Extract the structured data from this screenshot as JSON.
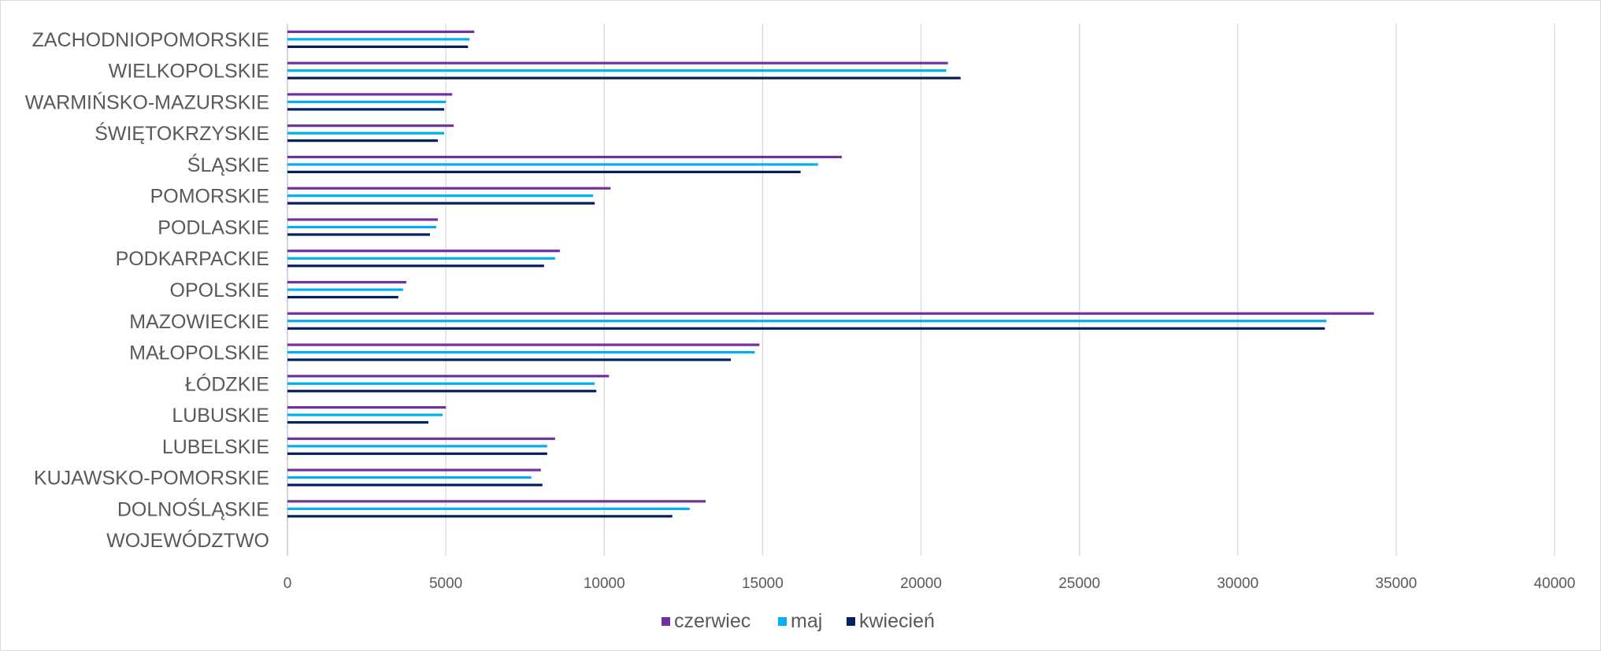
{
  "chart_data": {
    "type": "bar",
    "orientation": "horizontal",
    "title": "",
    "xlabel": "",
    "ylabel": "",
    "categories": [
      "WOJEWÓDZTWO",
      "DOLNOŚLĄSKIE",
      "KUJAWSKO-POMORSKIE",
      "LUBELSKIE",
      "LUBUSKIE",
      "ŁÓDZKIE",
      "MAŁOPOLSKIE",
      "MAZOWIECKIE",
      "OPOLSKIE",
      "PODKARPACKIE",
      "PODLASKIE",
      "POMORSKIE",
      "ŚLĄSKIE",
      "ŚWIĘTOKRZYSKIE",
      "WARMIŃSKO-MAZURSKIE",
      "WIELKOPOLSKIE",
      "ZACHODNIOPOMORSKIE"
    ],
    "series": [
      {
        "name": "czerwiec",
        "color": "#7030A0",
        "values": [
          0,
          13200,
          8000,
          8450,
          5000,
          10150,
          14900,
          34300,
          3750,
          8600,
          4750,
          10200,
          17500,
          5250,
          5200,
          20850,
          5900
        ]
      },
      {
        "name": "maj",
        "color": "#00B0F0",
        "values": [
          0,
          12700,
          7700,
          8200,
          4900,
          9700,
          14750,
          32800,
          3650,
          8450,
          4700,
          9650,
          16750,
          4950,
          5000,
          20800,
          5750
        ]
      },
      {
        "name": "kwiecień",
        "color": "#002060",
        "values": [
          0,
          12150,
          8050,
          8200,
          4450,
          9750,
          14000,
          32750,
          3500,
          8100,
          4500,
          9700,
          16200,
          4750,
          4950,
          21250,
          5700
        ]
      }
    ],
    "xlim": [
      0,
      40000
    ],
    "xticks": [
      0,
      5000,
      10000,
      15000,
      20000,
      25000,
      30000,
      35000,
      40000
    ],
    "xtick_labels": [
      "0",
      "5000",
      "10000",
      "15000",
      "20000",
      "25000",
      "30000",
      "35000",
      "40000"
    ],
    "grid": true,
    "legend_position": "bottom"
  }
}
